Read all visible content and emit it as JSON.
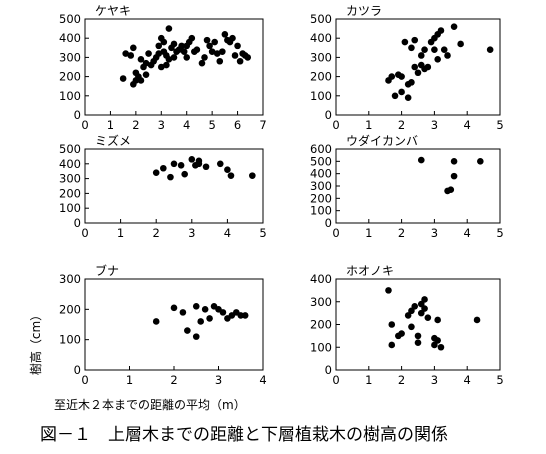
{
  "figure": {
    "caption": "図－１　上層木までの距離と下層植栽木の樹高の関係",
    "xlabel": "至近木２本までの距離の平均（m）",
    "ylabel": "樹高（cm）"
  },
  "chart_data": [
    {
      "type": "scatter",
      "title": "ケヤキ",
      "xlim": [
        0,
        7
      ],
      "ylim": [
        0,
        500
      ],
      "xticks": [
        0,
        1,
        2,
        3,
        4,
        5,
        6,
        7
      ],
      "yticks": [
        0,
        100,
        200,
        300,
        400,
        500
      ],
      "points": [
        [
          1.5,
          190
        ],
        [
          1.6,
          320
        ],
        [
          1.8,
          310
        ],
        [
          1.9,
          350
        ],
        [
          1.9,
          160
        ],
        [
          2.0,
          180
        ],
        [
          2.0,
          220
        ],
        [
          2.1,
          200
        ],
        [
          2.2,
          290
        ],
        [
          2.2,
          180
        ],
        [
          2.3,
          250
        ],
        [
          2.4,
          270
        ],
        [
          2.4,
          210
        ],
        [
          2.5,
          320
        ],
        [
          2.6,
          260
        ],
        [
          2.7,
          280
        ],
        [
          2.8,
          300
        ],
        [
          2.9,
          360
        ],
        [
          2.9,
          320
        ],
        [
          3.0,
          250
        ],
        [
          3.0,
          400
        ],
        [
          3.1,
          380
        ],
        [
          3.1,
          330
        ],
        [
          3.2,
          310
        ],
        [
          3.2,
          260
        ],
        [
          3.3,
          290
        ],
        [
          3.3,
          450
        ],
        [
          3.4,
          350
        ],
        [
          3.5,
          300
        ],
        [
          3.5,
          370
        ],
        [
          3.6,
          330
        ],
        [
          3.7,
          340
        ],
        [
          3.8,
          360
        ],
        [
          3.9,
          330
        ],
        [
          4.0,
          360
        ],
        [
          4.0,
          300
        ],
        [
          4.1,
          380
        ],
        [
          4.2,
          400
        ],
        [
          4.3,
          330
        ],
        [
          4.4,
          340
        ],
        [
          4.6,
          270
        ],
        [
          4.7,
          300
        ],
        [
          4.8,
          390
        ],
        [
          4.9,
          360
        ],
        [
          5.0,
          330
        ],
        [
          5.1,
          380
        ],
        [
          5.2,
          320
        ],
        [
          5.3,
          280
        ],
        [
          5.4,
          330
        ],
        [
          5.5,
          420
        ],
        [
          5.6,
          390
        ],
        [
          5.7,
          380
        ],
        [
          5.8,
          400
        ],
        [
          5.9,
          310
        ],
        [
          6.0,
          360
        ],
        [
          6.1,
          280
        ],
        [
          6.2,
          320
        ],
        [
          6.3,
          310
        ],
        [
          6.4,
          300
        ]
      ]
    },
    {
      "type": "scatter",
      "title": "カツラ",
      "xlim": [
        0,
        5
      ],
      "ylim": [
        0,
        500
      ],
      "xticks": [
        0,
        1,
        2,
        3,
        4,
        5
      ],
      "yticks": [
        0,
        100,
        200,
        300,
        400,
        500
      ],
      "points": [
        [
          1.6,
          180
        ],
        [
          1.7,
          200
        ],
        [
          1.8,
          100
        ],
        [
          1.9,
          210
        ],
        [
          2.0,
          120
        ],
        [
          2.0,
          200
        ],
        [
          2.1,
          380
        ],
        [
          2.2,
          160
        ],
        [
          2.2,
          90
        ],
        [
          2.3,
          350
        ],
        [
          2.3,
          170
        ],
        [
          2.4,
          390
        ],
        [
          2.4,
          250
        ],
        [
          2.5,
          220
        ],
        [
          2.6,
          310
        ],
        [
          2.6,
          260
        ],
        [
          2.7,
          240
        ],
        [
          2.7,
          340
        ],
        [
          2.8,
          250
        ],
        [
          2.9,
          380
        ],
        [
          3.0,
          340
        ],
        [
          3.0,
          400
        ],
        [
          3.1,
          420
        ],
        [
          3.1,
          290
        ],
        [
          3.2,
          440
        ],
        [
          3.3,
          340
        ],
        [
          3.4,
          310
        ],
        [
          3.6,
          460
        ],
        [
          3.8,
          370
        ],
        [
          4.7,
          340
        ]
      ]
    },
    {
      "type": "scatter",
      "title": "ミズメ",
      "xlim": [
        0,
        5
      ],
      "ylim": [
        0,
        500
      ],
      "xticks": [
        0,
        1,
        2,
        3,
        4,
        5
      ],
      "yticks": [
        0,
        100,
        200,
        300,
        400,
        500
      ],
      "points": [
        [
          2.0,
          340
        ],
        [
          2.2,
          370
        ],
        [
          2.4,
          310
        ],
        [
          2.5,
          400
        ],
        [
          2.7,
          390
        ],
        [
          2.8,
          330
        ],
        [
          3.0,
          430
        ],
        [
          3.1,
          390
        ],
        [
          3.2,
          400
        ],
        [
          3.2,
          420
        ],
        [
          3.4,
          380
        ],
        [
          3.8,
          400
        ],
        [
          4.0,
          360
        ],
        [
          4.1,
          320
        ],
        [
          4.7,
          320
        ]
      ]
    },
    {
      "type": "scatter",
      "title": "ウダイカンバ",
      "xlim": [
        0,
        5
      ],
      "ylim": [
        0,
        600
      ],
      "xticks": [
        0,
        1,
        2,
        3,
        4,
        5
      ],
      "yticks": [
        0,
        100,
        200,
        300,
        400,
        500,
        600
      ],
      "points": [
        [
          2.6,
          510
        ],
        [
          3.4,
          260
        ],
        [
          3.5,
          270
        ],
        [
          3.6,
          500
        ],
        [
          3.6,
          380
        ],
        [
          4.4,
          500
        ]
      ]
    },
    {
      "type": "scatter",
      "title": "ブナ",
      "xlim": [
        0,
        4
      ],
      "ylim": [
        0,
        300
      ],
      "xticks": [
        0,
        1,
        2,
        3,
        4
      ],
      "yticks": [
        0,
        100,
        200,
        300
      ],
      "points": [
        [
          1.6,
          160
        ],
        [
          2.0,
          205
        ],
        [
          2.2,
          190
        ],
        [
          2.3,
          130
        ],
        [
          2.5,
          110
        ],
        [
          2.5,
          210
        ],
        [
          2.6,
          160
        ],
        [
          2.7,
          200
        ],
        [
          2.8,
          170
        ],
        [
          2.9,
          210
        ],
        [
          3.0,
          200
        ],
        [
          3.1,
          190
        ],
        [
          3.2,
          170
        ],
        [
          3.3,
          180
        ],
        [
          3.4,
          190
        ],
        [
          3.5,
          180
        ],
        [
          3.6,
          180
        ]
      ]
    },
    {
      "type": "scatter",
      "title": "ホオノキ",
      "xlim": [
        0,
        5
      ],
      "ylim": [
        0,
        400
      ],
      "xticks": [
        0,
        1,
        2,
        3,
        4,
        5
      ],
      "yticks": [
        0,
        100,
        200,
        300,
        400
      ],
      "points": [
        [
          1.6,
          350
        ],
        [
          1.7,
          200
        ],
        [
          1.7,
          110
        ],
        [
          1.9,
          150
        ],
        [
          2.0,
          160
        ],
        [
          2.2,
          240
        ],
        [
          2.3,
          260
        ],
        [
          2.3,
          190
        ],
        [
          2.4,
          280
        ],
        [
          2.5,
          150
        ],
        [
          2.5,
          120
        ],
        [
          2.6,
          290
        ],
        [
          2.6,
          250
        ],
        [
          2.7,
          310
        ],
        [
          2.7,
          270
        ],
        [
          2.8,
          230
        ],
        [
          3.0,
          140
        ],
        [
          3.0,
          110
        ],
        [
          3.1,
          220
        ],
        [
          3.1,
          130
        ],
        [
          3.2,
          100
        ],
        [
          4.3,
          220
        ]
      ]
    }
  ]
}
